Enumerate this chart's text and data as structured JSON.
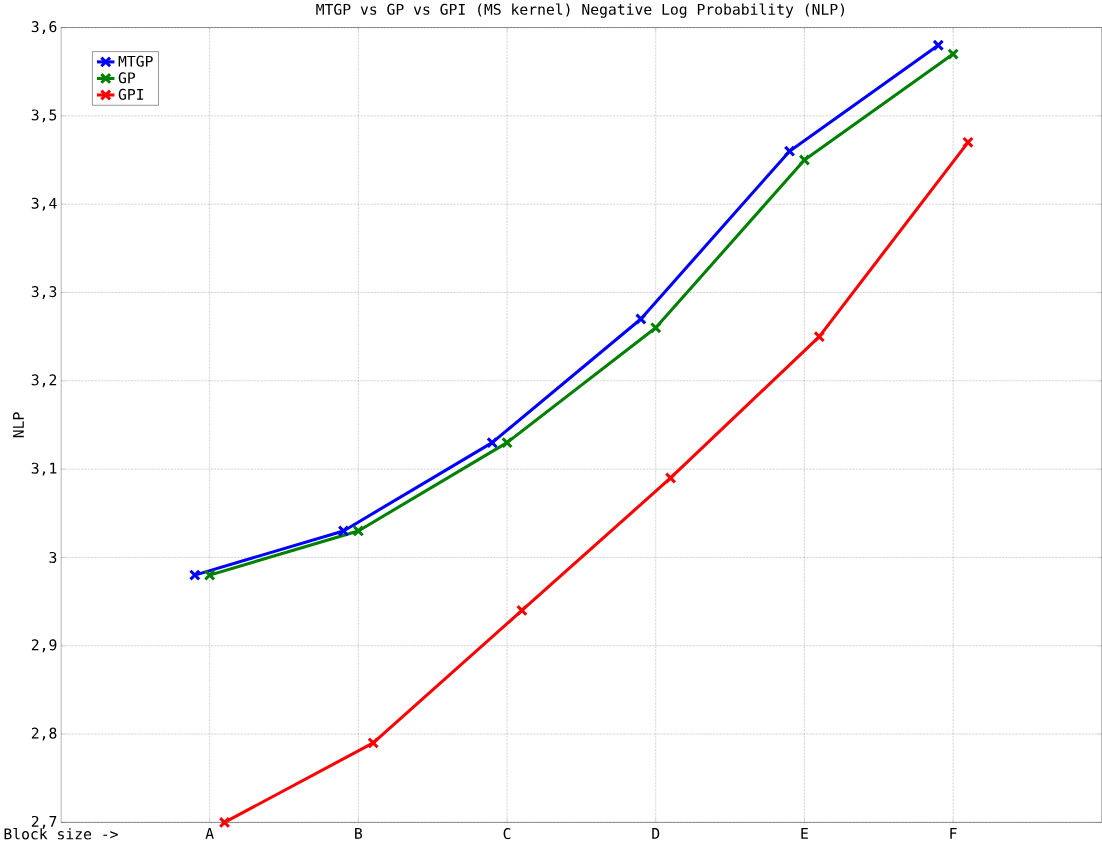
{
  "chart_data": {
    "type": "line",
    "title": "MTGP vs GP vs GPI (MS kernel) Negative Log Probability (NLP)",
    "ylabel": "NLP",
    "xlabel": "Block size ->",
    "categories": [
      "A",
      "B",
      "C",
      "D",
      "E",
      "F"
    ],
    "ylim": [
      2.7,
      3.6
    ],
    "yticks": [
      {
        "value": 2.7,
        "label": "2,7"
      },
      {
        "value": 2.8,
        "label": "2,8"
      },
      {
        "value": 2.9,
        "label": "2,9"
      },
      {
        "value": 3,
        "label": "3"
      },
      {
        "value": 3.1,
        "label": "3,1"
      },
      {
        "value": 3.2,
        "label": "3,2"
      },
      {
        "value": 3.3,
        "label": "3,3"
      },
      {
        "value": 3.4,
        "label": "3,4"
      },
      {
        "value": 3.5,
        "label": "3,5"
      },
      {
        "value": 3.6,
        "label": "3,6"
      }
    ],
    "grid": true,
    "legend": "top left",
    "marker": "cross",
    "line_style": "solid",
    "series": [
      {
        "name": "MTGP",
        "color": "#0000ff",
        "values": [
          2.98,
          3.03,
          3.13,
          3.27,
          3.46,
          3.58
        ]
      },
      {
        "name": "GP",
        "color": "#008000",
        "values": [
          2.98,
          3.03,
          3.13,
          3.26,
          3.45,
          3.57
        ]
      },
      {
        "name": "GPI",
        "color": "#ff0000",
        "values": [
          2.7,
          2.79,
          2.94,
          3.09,
          3.25,
          3.47
        ]
      }
    ]
  }
}
